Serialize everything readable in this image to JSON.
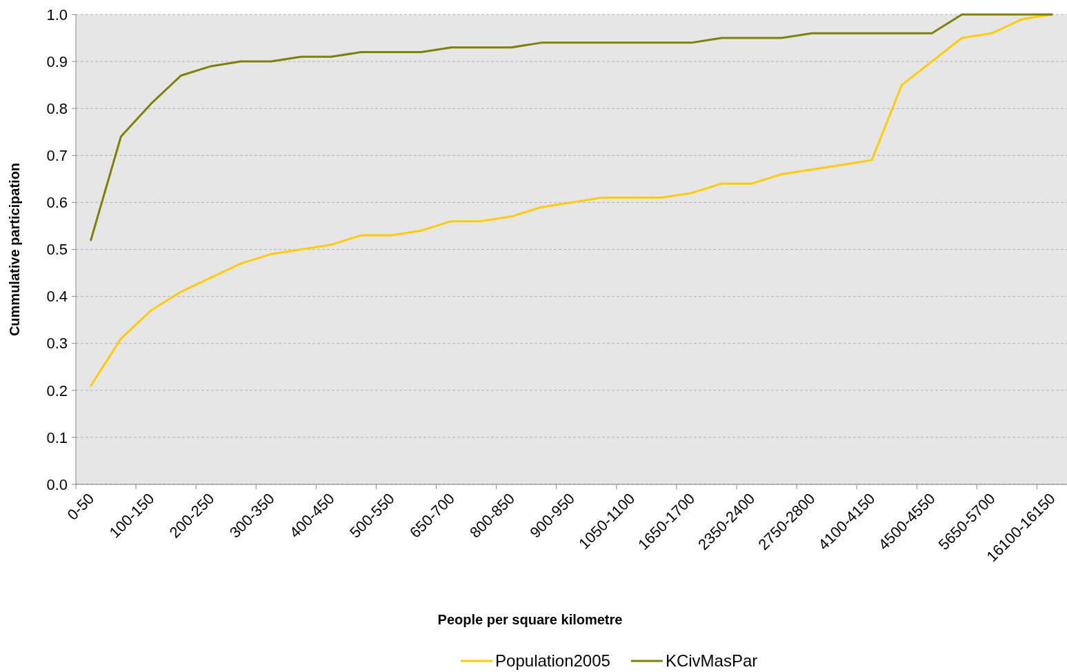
{
  "chart_data": {
    "type": "line",
    "xlabel": "People per square kilometre",
    "ylabel": "Cummulative participation",
    "categories": [
      "0-50",
      null,
      "100-150",
      null,
      "200-250",
      null,
      "300-350",
      null,
      "400-450",
      null,
      "500-550",
      null,
      "650-700",
      null,
      "800-850",
      null,
      "900-950",
      null,
      "1050-1100",
      null,
      "1650-1700",
      null,
      "2350-2400",
      null,
      "2750-2800",
      null,
      "4100-4150",
      null,
      "4500-4550",
      null,
      "5650-5700",
      null,
      "16100-16150"
    ],
    "series": [
      {
        "name": "Population2005",
        "color": "#ffcc00",
        "values": [
          0.21,
          0.31,
          0.37,
          0.41,
          0.44,
          0.47,
          0.49,
          0.5,
          0.51,
          0.53,
          0.53,
          0.54,
          0.56,
          0.56,
          0.57,
          0.59,
          0.6,
          0.61,
          0.61,
          0.61,
          0.62,
          0.64,
          0.64,
          0.66,
          0.67,
          0.68,
          0.69,
          0.85,
          0.9,
          0.95,
          0.96,
          0.99,
          1.0
        ]
      },
      {
        "name": "KCivMasPar",
        "color": "#808000",
        "values": [
          0.52,
          0.74,
          0.81,
          0.87,
          0.89,
          0.9,
          0.9,
          0.91,
          0.91,
          0.92,
          0.92,
          0.92,
          0.93,
          0.93,
          0.93,
          0.94,
          0.94,
          0.94,
          0.94,
          0.94,
          0.94,
          0.95,
          0.95,
          0.95,
          0.96,
          0.96,
          0.96,
          0.96,
          0.96,
          1.0,
          1.0,
          1.0,
          1.0
        ]
      }
    ],
    "ylim": [
      0,
      1
    ],
    "yticks": [
      {
        "value": 0,
        "label": "0.0"
      },
      0.1,
      0.2,
      0.3,
      0.4,
      0.5,
      0.6,
      0.7,
      0.8,
      0.9,
      {
        "value": 1,
        "label": "1.0"
      }
    ],
    "grid": "y",
    "legend": "bottom",
    "marker": "none",
    "line_style": "solid"
  }
}
